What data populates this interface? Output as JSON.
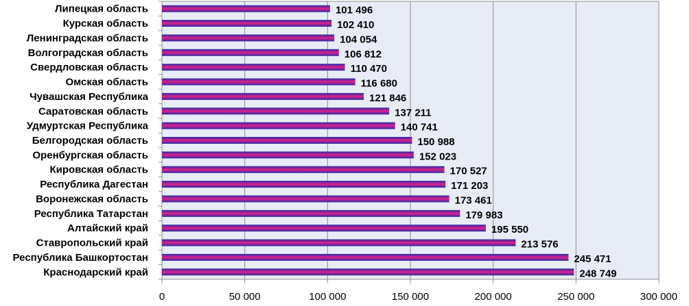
{
  "chart_data": {
    "type": "bar",
    "orientation": "horizontal",
    "title": "",
    "xlabel": "",
    "ylabel": "",
    "xlim": [
      0,
      300000
    ],
    "x_ticks": [
      "0",
      "50 000",
      "100 000",
      "150 000",
      "200 000",
      "250 000",
      "300 000"
    ],
    "grid": "vertical",
    "legend": "none",
    "categories": [
      "Липецкая область",
      "Курская область",
      "Ленинградская область",
      "Волгоградская область",
      "Свердловская область",
      "Омская область",
      "Чувашская Республика",
      "Саратовская  область",
      "Удмуртская  Республика",
      "Белгородская область",
      "Оренбургская область",
      "Кировская область",
      "Республика Дагестан",
      "Воронежская область",
      "Республика Татарстан",
      "Алтайский край",
      "Ставропольский край",
      "Республика Башкортостан",
      "Краснодарский край"
    ],
    "values": [
      101496,
      102410,
      104054,
      106812,
      110470,
      116680,
      121846,
      137211,
      140741,
      150988,
      152023,
      170527,
      171203,
      173461,
      179983,
      195550,
      213576,
      245471,
      248749
    ],
    "data_labels": [
      "101 496",
      "102 410",
      "104 054",
      "106 812",
      "110 470",
      "116 680",
      "121 846",
      "137 211",
      "140 741",
      "150 988",
      "152 023",
      "170 527",
      "171 203",
      "173 461",
      "179 983",
      "195 550",
      "213 576",
      "245 471",
      "248 749"
    ],
    "colors": {
      "plot_background": "#e8ecf6",
      "grid": "#8c8c8c",
      "bar_top": "#2a2aa8",
      "bar_mid": "#e0208a",
      "bar_bottom": "#2a2aa8"
    }
  }
}
